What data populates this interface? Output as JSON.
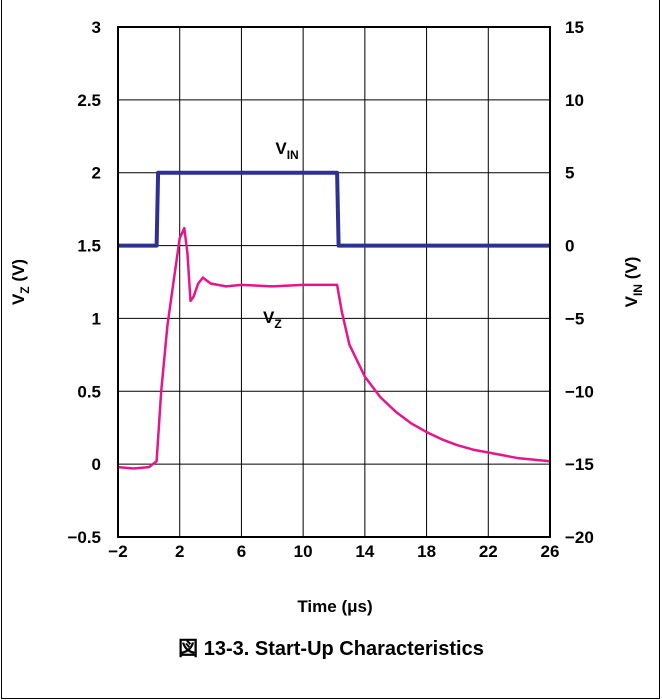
{
  "caption": "図 13-3. Start-Up Characteristics",
  "chart_data": {
    "type": "line",
    "title": "",
    "xlabel": "Time (μs)",
    "ylabel_left": {
      "main": "V",
      "sub": "Z",
      "rest": " (V)"
    },
    "ylabel_right": {
      "main": "V",
      "sub": "IN",
      "rest": " (V)"
    },
    "xlim": [
      -2,
      26
    ],
    "x_ticks": [
      -2,
      2,
      6,
      10,
      14,
      18,
      22,
      26
    ],
    "ylim_left": [
      -0.5,
      3
    ],
    "y_ticks_left": [
      "3",
      "2.5",
      "2",
      "1.5",
      "1",
      "0.5",
      "0",
      "−0.5"
    ],
    "y_ticks_left_values": [
      3,
      2.5,
      2,
      1.5,
      1,
      0.5,
      0,
      -0.5
    ],
    "ylim_right": [
      -20,
      15
    ],
    "y_ticks_right": [
      "15",
      "10",
      "5",
      "0",
      "−5",
      "−10",
      "−15",
      "−20"
    ],
    "y_ticks_right_values": [
      15,
      10,
      5,
      0,
      -5,
      -10,
      -15,
      -20
    ],
    "grid": true,
    "series": [
      {
        "name_main": "V",
        "name_sub": "IN",
        "axis": "right",
        "color": "#2e3192",
        "x": [
          -2,
          0.5,
          0.6,
          12.2,
          12.3,
          26
        ],
        "y": [
          0,
          0,
          5,
          5,
          0,
          0
        ]
      },
      {
        "name_main": "V",
        "name_sub": "Z",
        "axis": "left",
        "color": "#e5168c",
        "x": [
          -2,
          -1,
          0,
          0.5,
          0.8,
          1.2,
          1.6,
          2.0,
          2.3,
          2.5,
          2.7,
          2.9,
          3.2,
          3.5,
          4,
          5,
          6,
          8,
          10,
          12.2,
          12.5,
          13,
          14,
          15,
          16,
          17,
          18,
          19,
          20,
          21,
          22,
          23,
          24,
          25,
          26
        ],
        "y": [
          -0.02,
          -0.03,
          -0.02,
          0.02,
          0.5,
          0.95,
          1.25,
          1.55,
          1.62,
          1.45,
          1.12,
          1.15,
          1.24,
          1.28,
          1.24,
          1.22,
          1.23,
          1.22,
          1.23,
          1.23,
          1.05,
          0.82,
          0.6,
          0.46,
          0.36,
          0.28,
          0.22,
          0.17,
          0.13,
          0.1,
          0.08,
          0.06,
          0.04,
          0.03,
          0.02
        ]
      }
    ],
    "annotations": [
      {
        "main": "V",
        "sub": "IN",
        "x": 8.2,
        "y_left": 2.13,
        "color": "#000000"
      },
      {
        "main": "V",
        "sub": "Z",
        "x": 7.4,
        "y_left": 0.97,
        "color": "#000000"
      }
    ]
  }
}
